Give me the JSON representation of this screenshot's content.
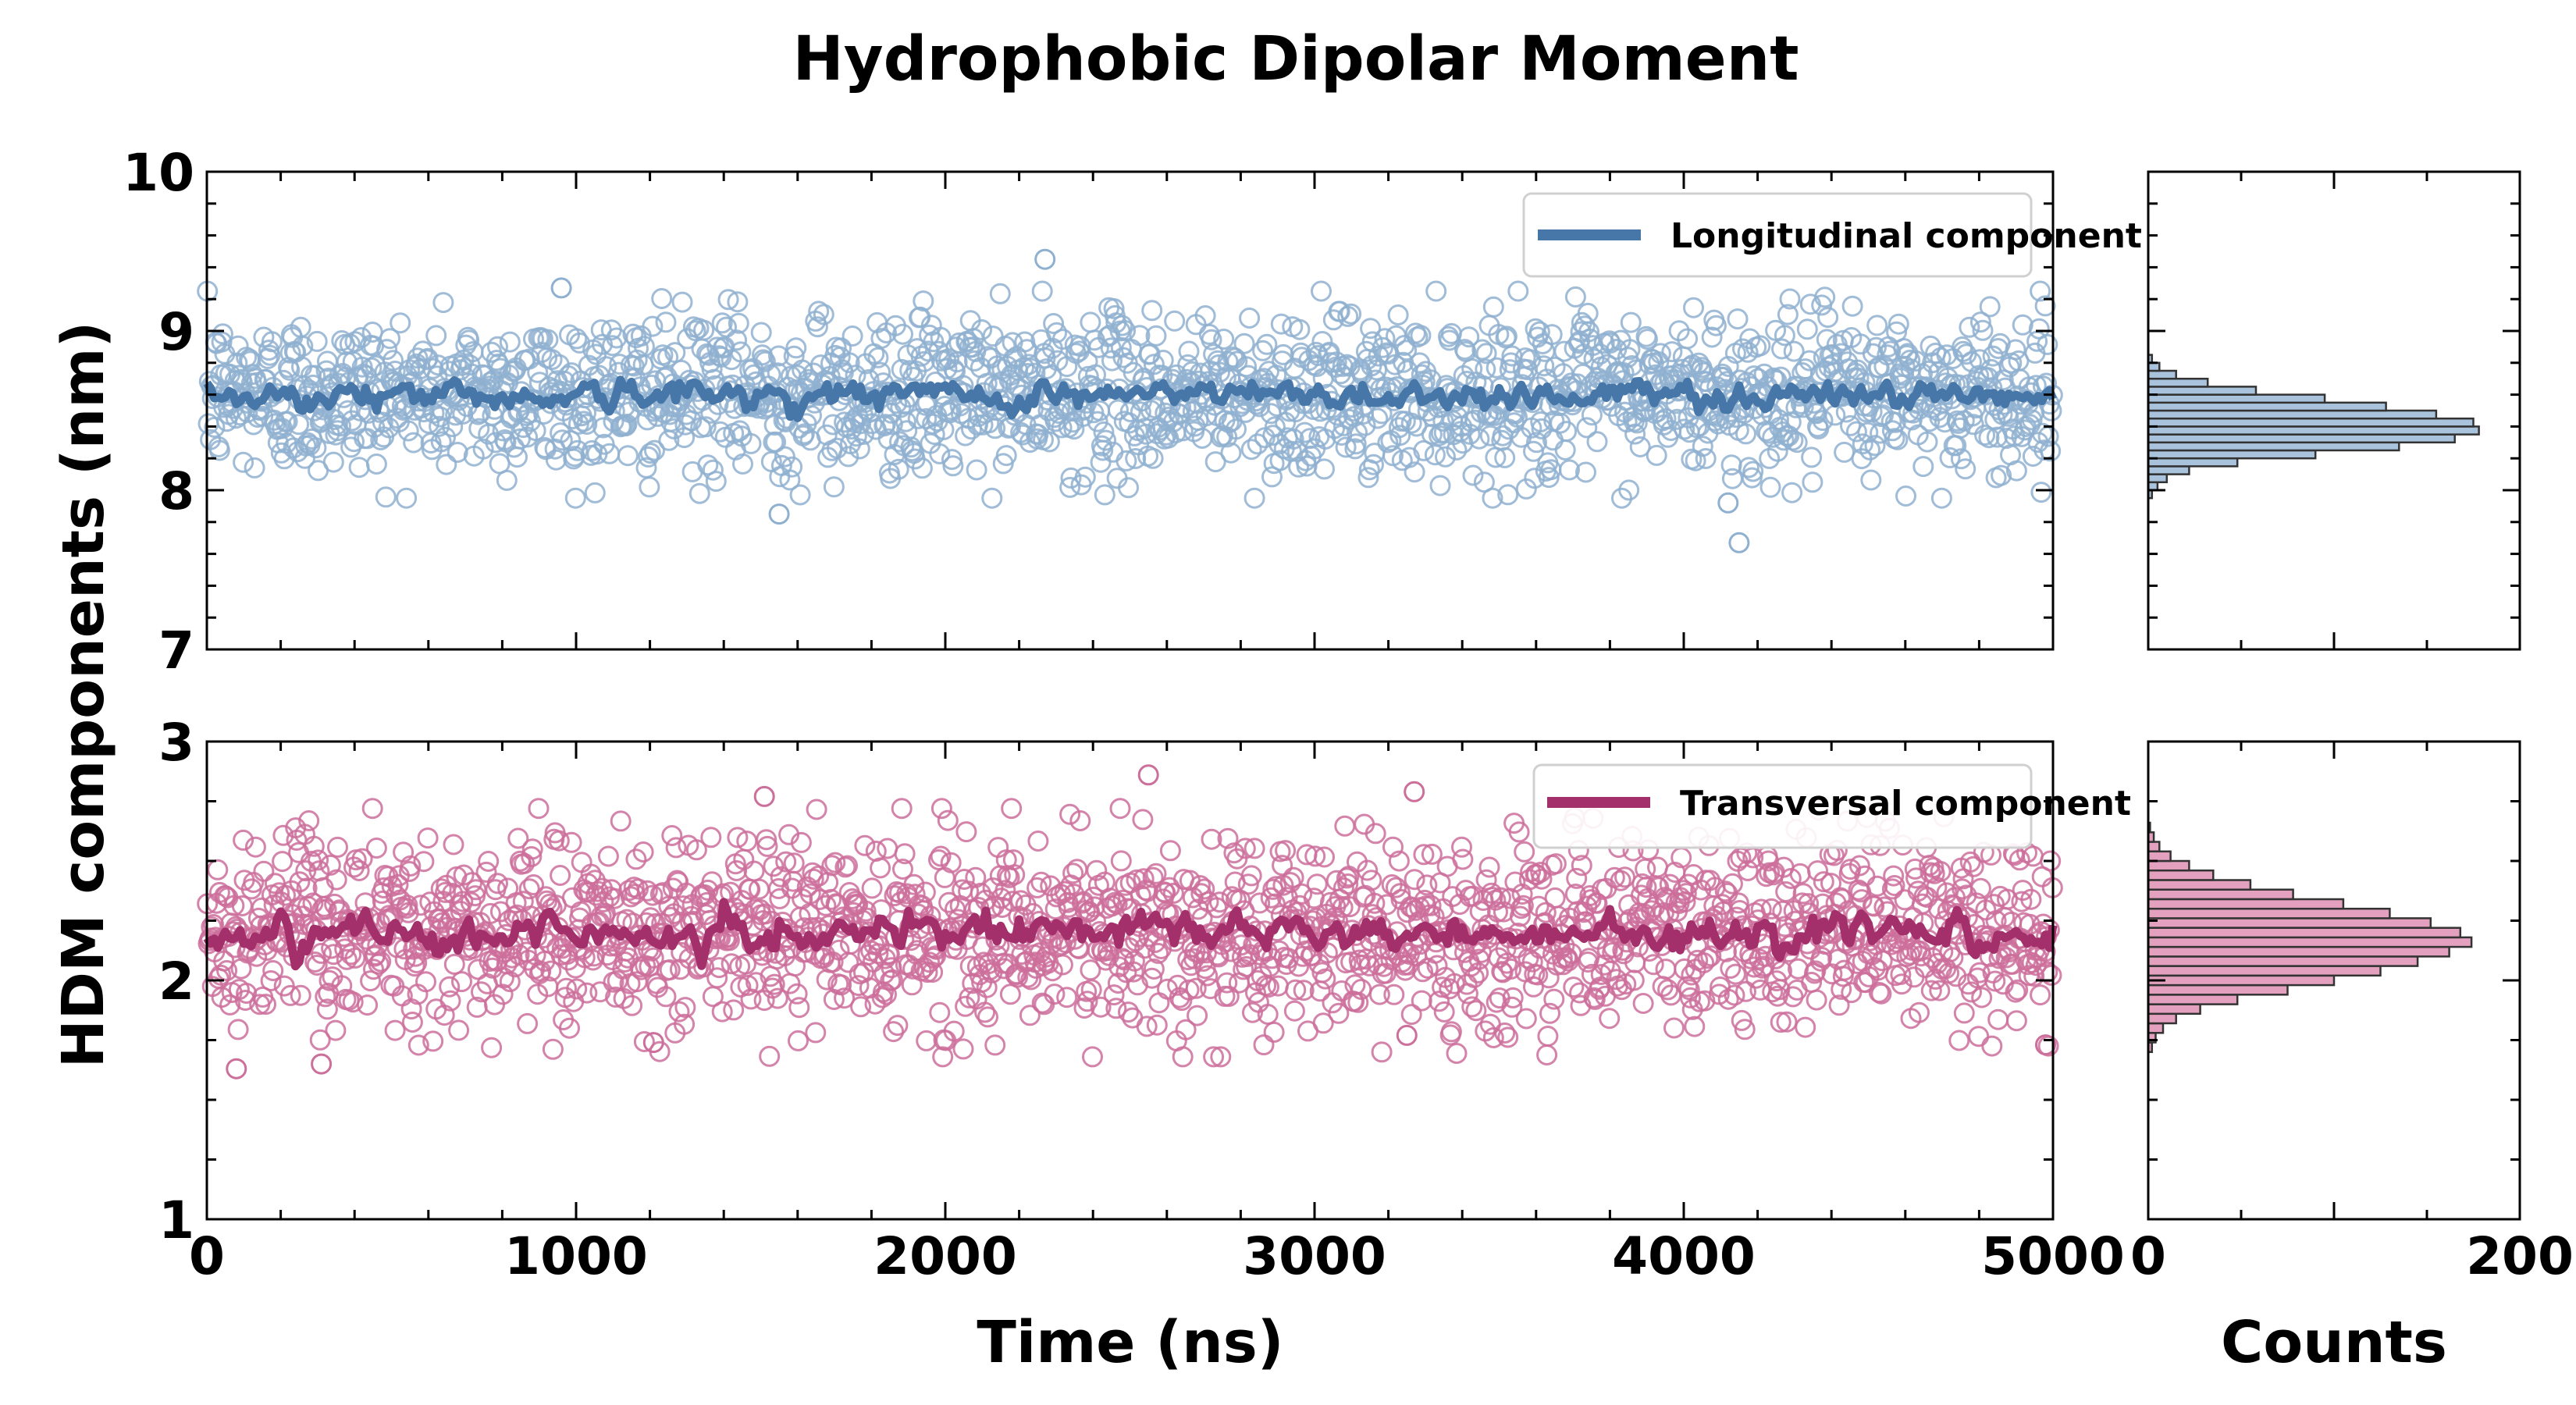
{
  "figure": {
    "title": "Hydrophobic Dipolar Moment",
    "xlabel": "Time (ns)",
    "ylabel": "HDM components (nm)",
    "hist_xlabel": "Counts"
  },
  "colors": {
    "longitudinal": "#4677a8",
    "longitudinal_light": "#8fb0d0",
    "transversal": "#a3306b",
    "transversal_light": "#cc6f9b",
    "hist_long_fill": "#a9c3dc",
    "hist_trans_fill": "#e3a1bf"
  },
  "chart_data": [
    {
      "type": "scatter",
      "panel": "top-timeseries",
      "series": [
        {
          "name": "Longitudinal component",
          "kind": "scatter+running-average",
          "mean": 8.6,
          "spread": 0.25,
          "notable_points": [
            [
              2270,
              9.45
            ],
            [
              960,
              9.27
            ],
            [
              1550,
              7.85
            ],
            [
              4150,
              7.67
            ],
            [
              4120,
              7.92
            ]
          ],
          "running_average_range": [
            8.25,
            8.75
          ]
        }
      ],
      "x_range": [
        0,
        5000
      ],
      "ylim": [
        7,
        10
      ],
      "yticks": [
        7,
        8,
        9,
        10
      ],
      "xticks": [
        0,
        1000,
        2000,
        3000,
        4000,
        5000
      ],
      "legend": "top-right",
      "grid": false
    },
    {
      "type": "scatter",
      "panel": "bottom-timeseries",
      "series": [
        {
          "name": "Transversal component",
          "kind": "scatter+running-average",
          "mean": 2.2,
          "spread": 0.2,
          "notable_points": [
            [
              2550,
              2.86
            ],
            [
              1510,
              2.77
            ],
            [
              3270,
              2.79
            ],
            [
              80,
              1.63
            ],
            [
              310,
              1.65
            ],
            [
              1210,
              1.74
            ],
            [
              3250,
              1.77
            ],
            [
              4980,
              1.73
            ]
          ],
          "running_average_range": [
            2.05,
            2.4
          ]
        }
      ],
      "x_range": [
        0,
        5000
      ],
      "ylim": [
        1,
        3
      ],
      "yticks": [
        1,
        2,
        3
      ],
      "xticks": [
        0,
        1000,
        2000,
        3000,
        4000,
        5000
      ],
      "legend": "top-right",
      "grid": false
    },
    {
      "type": "bar",
      "panel": "top-histogram",
      "orientation": "horizontal",
      "bin_start": 7.95,
      "bin_width": 0.05,
      "counts": [
        2,
        5,
        10,
        22,
        48,
        90,
        135,
        165,
        178,
        175,
        155,
        128,
        95,
        58,
        32,
        15,
        6,
        2
      ],
      "xlim": [
        0,
        200
      ],
      "ylim": [
        7,
        10
      ]
    },
    {
      "type": "bar",
      "panel": "bottom-histogram",
      "orientation": "horizontal",
      "bin_start": 1.7,
      "bin_width": 0.04,
      "counts": [
        2,
        4,
        8,
        15,
        28,
        48,
        75,
        100,
        125,
        145,
        162,
        174,
        168,
        152,
        130,
        105,
        78,
        55,
        35,
        22,
        12,
        6,
        3,
        1
      ],
      "xlim": [
        0,
        200
      ],
      "ylim": [
        1,
        3
      ],
      "xticks": [
        0,
        200
      ]
    }
  ]
}
